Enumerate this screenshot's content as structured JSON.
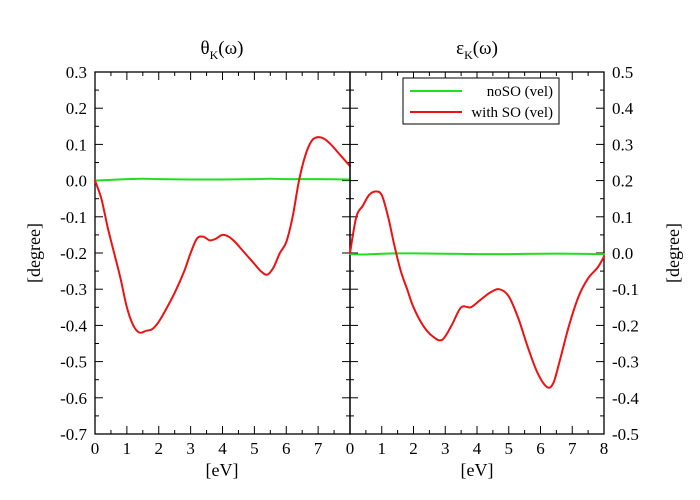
{
  "chart_data": [
    {
      "type": "line",
      "title": "θ_K(ω)",
      "title_main": "θ",
      "title_sub": "K",
      "title_tail": "(ω)",
      "xlabel": "[eV]",
      "ylabel": "[degree]",
      "xlim": [
        0,
        8
      ],
      "ylim": [
        -0.7,
        0.3
      ],
      "x_ticks": [
        0,
        1,
        2,
        3,
        4,
        5,
        6,
        7
      ],
      "x_tick_labels": [
        "0",
        "1",
        "2",
        "3",
        "4",
        "5",
        "6",
        "7"
      ],
      "y_ticks": [
        -0.7,
        -0.6,
        -0.5,
        -0.4,
        -0.3,
        -0.2,
        -0.1,
        0.0,
        0.1,
        0.2,
        0.3
      ],
      "y_tick_labels": [
        "-0.7",
        "-0.6",
        "-0.5",
        "-0.4",
        "-0.3",
        "-0.2",
        "-0.1",
        "0.0",
        "0.1",
        "0.2",
        "0.3"
      ],
      "grid": false,
      "series": [
        {
          "name": "noSO (vel)",
          "color": "#22dd22",
          "x": [
            0,
            0.5,
            1,
            1.5,
            2,
            3,
            4,
            5,
            5.5,
            6,
            7,
            8
          ],
          "y": [
            0.0,
            0.002,
            0.004,
            0.005,
            0.004,
            0.003,
            0.003,
            0.004,
            0.005,
            0.004,
            0.004,
            0.003
          ]
        },
        {
          "name": "with SO (vel)",
          "color": "#ee1111",
          "x": [
            0,
            0.2,
            0.4,
            0.6,
            0.8,
            1.0,
            1.2,
            1.4,
            1.6,
            1.8,
            2.0,
            2.2,
            2.5,
            2.8,
            3.0,
            3.2,
            3.4,
            3.6,
            3.8,
            4.0,
            4.2,
            4.4,
            4.6,
            4.8,
            5.0,
            5.2,
            5.4,
            5.6,
            5.8,
            6.0,
            6.2,
            6.4,
            6.6,
            6.8,
            7.0,
            7.2,
            7.4,
            7.6,
            7.8,
            8.0
          ],
          "y": [
            0.0,
            -0.05,
            -0.13,
            -0.2,
            -0.27,
            -0.35,
            -0.4,
            -0.42,
            -0.415,
            -0.41,
            -0.39,
            -0.36,
            -0.31,
            -0.25,
            -0.2,
            -0.16,
            -0.155,
            -0.165,
            -0.16,
            -0.15,
            -0.155,
            -0.17,
            -0.19,
            -0.21,
            -0.23,
            -0.25,
            -0.26,
            -0.24,
            -0.2,
            -0.17,
            -0.1,
            0.0,
            0.07,
            0.11,
            0.12,
            0.115,
            0.1,
            0.08,
            0.06,
            0.04
          ]
        }
      ]
    },
    {
      "type": "line",
      "title": "ε_K(ω)",
      "title_main": "ε",
      "title_sub": "K",
      "title_tail": "(ω)",
      "xlabel": "[eV]",
      "ylabel": "[degree]",
      "xlim": [
        0,
        8
      ],
      "ylim": [
        -0.5,
        0.5
      ],
      "x_ticks": [
        0,
        1,
        2,
        3,
        4,
        5,
        6,
        7,
        8
      ],
      "x_tick_labels": [
        "0",
        "1",
        "2",
        "3",
        "4",
        "5",
        "6",
        "7",
        "8"
      ],
      "y_ticks": [
        -0.5,
        -0.4,
        -0.3,
        -0.2,
        -0.1,
        0.0,
        0.1,
        0.2,
        0.3,
        0.4,
        0.5
      ],
      "y_tick_labels": [
        "-0.5",
        "-0.4",
        "-0.3",
        "-0.2",
        "-0.1",
        "0.0",
        "0.1",
        "0.2",
        "0.3",
        "0.4",
        "0.5"
      ],
      "legend": {
        "position": "top-right",
        "entries": [
          {
            "label": "noSO (vel)",
            "color": "#22dd22"
          },
          {
            "label": "with SO (vel)",
            "color": "#ee1111"
          }
        ]
      },
      "grid": false,
      "series": [
        {
          "name": "noSO (vel)",
          "color": "#22dd22",
          "x": [
            0,
            0.5,
            1,
            1.5,
            2,
            3,
            4,
            5,
            6,
            7,
            8
          ],
          "y": [
            -0.003,
            -0.004,
            -0.002,
            -0.001,
            -0.001,
            -0.002,
            -0.003,
            -0.003,
            -0.002,
            -0.002,
            -0.003
          ]
        },
        {
          "name": "with SO (vel)",
          "color": "#ee1111",
          "x": [
            0,
            0.2,
            0.4,
            0.6,
            0.8,
            1.0,
            1.2,
            1.4,
            1.6,
            1.8,
            2.0,
            2.3,
            2.6,
            2.9,
            3.2,
            3.5,
            3.8,
            4.1,
            4.4,
            4.7,
            5.0,
            5.3,
            5.6,
            5.9,
            6.2,
            6.4,
            6.6,
            6.9,
            7.2,
            7.5,
            7.8,
            8.0
          ],
          "y": [
            0.0,
            0.1,
            0.13,
            0.16,
            0.17,
            0.16,
            0.1,
            0.02,
            -0.05,
            -0.1,
            -0.15,
            -0.2,
            -0.23,
            -0.24,
            -0.2,
            -0.15,
            -0.15,
            -0.13,
            -0.11,
            -0.1,
            -0.12,
            -0.18,
            -0.26,
            -0.33,
            -0.37,
            -0.36,
            -0.3,
            -0.2,
            -0.12,
            -0.07,
            -0.04,
            -0.01
          ]
        }
      ]
    }
  ]
}
